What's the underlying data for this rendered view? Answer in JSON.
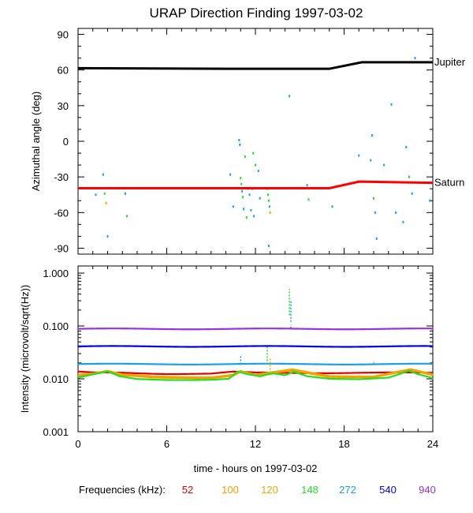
{
  "chart_data": {
    "title": "URAP Direction Finding  1997-03-02",
    "xlabel": "time - hours on 1997-03-02",
    "xlim": [
      0,
      24
    ],
    "xticks": [
      "0",
      "6",
      "12",
      "18",
      "24"
    ],
    "panels": [
      {
        "type": "line+scatter",
        "ylabel": "Azimuthal angle (deg)",
        "ylim": [
          -95,
          95
        ],
        "yticks": [
          "90",
          "60",
          "30",
          "0",
          "-30",
          "-60",
          "-90"
        ],
        "series": [
          {
            "name": "Jupiter",
            "label": "Jupiter",
            "color": "#000000",
            "x": [
              0,
              10,
              17,
              19.2,
              24
            ],
            "y": [
              61.5,
              61,
              61,
              66.5,
              66.5
            ]
          },
          {
            "name": "Saturn",
            "label": "Saturn",
            "color": "#ff0000",
            "x": [
              0,
              10,
              17,
              19,
              24
            ],
            "y": [
              -39.5,
              -39.5,
              -39.5,
              -34,
              -35
            ]
          }
        ],
        "scatter": [
          {
            "x": 1.2,
            "y": -45,
            "f": "272"
          },
          {
            "x": 1.8,
            "y": -44,
            "f": "148"
          },
          {
            "x": 1.9,
            "y": -52,
            "f": "100"
          },
          {
            "x": 1.7,
            "y": -28,
            "f": "272"
          },
          {
            "x": 2.0,
            "y": -80,
            "f": "272"
          },
          {
            "x": 3.2,
            "y": -44,
            "f": "272"
          },
          {
            "x": 3.3,
            "y": -63,
            "f": "148"
          },
          {
            "x": 10.3,
            "y": -28,
            "f": "272"
          },
          {
            "x": 10.5,
            "y": -55,
            "f": "272"
          },
          {
            "x": 10.9,
            "y": 1,
            "f": "272"
          },
          {
            "x": 10.95,
            "y": -3,
            "f": "272"
          },
          {
            "x": 11.0,
            "y": -31,
            "f": "148"
          },
          {
            "x": 11.05,
            "y": -36,
            "f": "148"
          },
          {
            "x": 11.1,
            "y": -42,
            "f": "272"
          },
          {
            "x": 11.15,
            "y": -47,
            "f": "148"
          },
          {
            "x": 11.2,
            "y": -57,
            "f": "272"
          },
          {
            "x": 11.3,
            "y": -13,
            "f": "148"
          },
          {
            "x": 11.4,
            "y": -64,
            "f": "148"
          },
          {
            "x": 11.5,
            "y": -40,
            "f": "120"
          },
          {
            "x": 11.6,
            "y": -45,
            "f": "272"
          },
          {
            "x": 11.7,
            "y": -58,
            "f": "272"
          },
          {
            "x": 11.8,
            "y": -40,
            "f": "272"
          },
          {
            "x": 11.85,
            "y": -10,
            "f": "148"
          },
          {
            "x": 11.9,
            "y": -63,
            "f": "272"
          },
          {
            "x": 12.0,
            "y": -20,
            "f": "148"
          },
          {
            "x": 12.2,
            "y": -25,
            "f": "272"
          },
          {
            "x": 12.3,
            "y": -48,
            "f": "272"
          },
          {
            "x": 12.8,
            "y": -40,
            "f": "120"
          },
          {
            "x": 12.85,
            "y": -45,
            "f": "148"
          },
          {
            "x": 12.9,
            "y": -50,
            "f": "148"
          },
          {
            "x": 12.95,
            "y": -55,
            "f": "272"
          },
          {
            "x": 13.0,
            "y": -60,
            "f": "120"
          },
          {
            "x": 12.9,
            "y": -88,
            "f": "272"
          },
          {
            "x": 14.3,
            "y": 38,
            "f": "272"
          },
          {
            "x": 15.5,
            "y": -37,
            "f": "272"
          },
          {
            "x": 15.6,
            "y": -49,
            "f": "148"
          },
          {
            "x": 17.2,
            "y": -55,
            "f": "272"
          },
          {
            "x": 19.0,
            "y": -12,
            "f": "272"
          },
          {
            "x": 19.8,
            "y": -16,
            "f": "272"
          },
          {
            "x": 19.9,
            "y": 5,
            "f": "272"
          },
          {
            "x": 20.0,
            "y": -48,
            "f": "148"
          },
          {
            "x": 20.1,
            "y": -60,
            "f": "272"
          },
          {
            "x": 20.2,
            "y": -82,
            "f": "272"
          },
          {
            "x": 20.7,
            "y": -20,
            "f": "272"
          },
          {
            "x": 21.2,
            "y": 31,
            "f": "272"
          },
          {
            "x": 21.5,
            "y": -60,
            "f": "272"
          },
          {
            "x": 22.0,
            "y": -68,
            "f": "272"
          },
          {
            "x": 22.2,
            "y": -5,
            "f": "272"
          },
          {
            "x": 22.4,
            "y": -30,
            "f": "148"
          },
          {
            "x": 22.6,
            "y": -44,
            "f": "272"
          },
          {
            "x": 22.8,
            "y": 70,
            "f": "272"
          },
          {
            "x": 23.8,
            "y": -50,
            "f": "272"
          }
        ]
      },
      {
        "type": "line",
        "ylabel": "Intensity (microvolt/sqrt(Hz))",
        "yscale": "log",
        "ylim": [
          0.001,
          1.2
        ],
        "yticks": [
          "1.000",
          "0.100",
          "0.010",
          "0.001"
        ],
        "series": [
          {
            "name": "940",
            "color": "#9b30e0",
            "x": [
              0,
              24
            ],
            "y": [
              0.088,
              0.088
            ]
          },
          {
            "name": "540",
            "color": "#0000e0",
            "x": [
              0,
              24
            ],
            "y": [
              0.041,
              0.041
            ]
          },
          {
            "name": "272",
            "color": "#1aa0e8",
            "x": [
              0,
              24
            ],
            "y": [
              0.019,
              0.019
            ]
          },
          {
            "name": "52",
            "color": "#e00000",
            "x": [
              0,
              1,
              3,
              6,
              9,
              10.5,
              12,
              15,
              18,
              21,
              24
            ],
            "y": [
              0.0135,
              0.013,
              0.013,
              0.0125,
              0.0125,
              0.0135,
              0.013,
              0.013,
              0.013,
              0.013,
              0.013
            ]
          },
          {
            "name": "120",
            "color": "#e0b000",
            "x": [
              0,
              1,
              2,
              3,
              5,
              9,
              10.5,
              11,
              12,
              13,
              14.5,
              17,
              20,
              22.5,
              24
            ],
            "y": [
              0.012,
              0.0125,
              0.014,
              0.012,
              0.0112,
              0.0108,
              0.012,
              0.014,
              0.0118,
              0.013,
              0.015,
              0.0115,
              0.0112,
              0.015,
              0.012
            ]
          },
          {
            "name": "100",
            "color": "#ff9a00",
            "x": [
              0,
              1,
              2,
              3,
              5,
              9,
              10.5,
              11,
              12,
              13,
              14.5,
              17,
              20,
              22.5,
              24
            ],
            "y": [
              0.0115,
              0.012,
              0.0135,
              0.0115,
              0.0106,
              0.0104,
              0.0114,
              0.0135,
              0.0114,
              0.0125,
              0.0142,
              0.011,
              0.0108,
              0.0145,
              0.0115
            ]
          },
          {
            "name": "148",
            "color": "#22e020",
            "x": [
              0,
              0.5,
              1,
              2,
              2.8,
              4,
              6,
              9,
              10.2,
              10.8,
              11.5,
              12.3,
              13.2,
              14,
              14.6,
              15.5,
              17,
              19,
              21,
              22.4,
              23,
              24
            ],
            "y": [
              0.0105,
              0.0112,
              0.012,
              0.0135,
              0.0112,
              0.0098,
              0.0096,
              0.0097,
              0.0102,
              0.0135,
              0.012,
              0.011,
              0.0125,
              0.0115,
              0.014,
              0.0112,
              0.0102,
              0.01,
              0.0105,
              0.0145,
              0.012,
              0.0102
            ]
          }
        ],
        "spikes": [
          {
            "x": 11.0,
            "y1": 0.019,
            "y2": 0.028,
            "f": "272"
          },
          {
            "x": 12.8,
            "y1": 0.019,
            "y2": 0.04,
            "f": "148"
          },
          {
            "x": 13.0,
            "y1": 0.013,
            "y2": 0.025,
            "f": "120"
          },
          {
            "x": 14.3,
            "y1": 0.16,
            "y2": 0.5,
            "f": "148"
          },
          {
            "x": 14.4,
            "y1": 0.12,
            "y2": 0.3,
            "f": "272"
          },
          {
            "x": 14.4,
            "y1": 0.09,
            "y2": 0.105,
            "f": "940"
          },
          {
            "x": 20.0,
            "y1": 0.019,
            "y2": 0.022,
            "f": "272"
          }
        ]
      }
    ],
    "legend": {
      "label": "Frequencies (kHz):",
      "entries": [
        {
          "value": "52",
          "color": "#e00000"
        },
        {
          "value": "100",
          "color": "#ff9a00"
        },
        {
          "value": "120",
          "color": "#e0b000"
        },
        {
          "value": "148",
          "color": "#22e020"
        },
        {
          "value": "272",
          "color": "#1aa0e8"
        },
        {
          "value": "540",
          "color": "#0000e0"
        },
        {
          "value": "940",
          "color": "#9b30e0"
        }
      ]
    }
  }
}
